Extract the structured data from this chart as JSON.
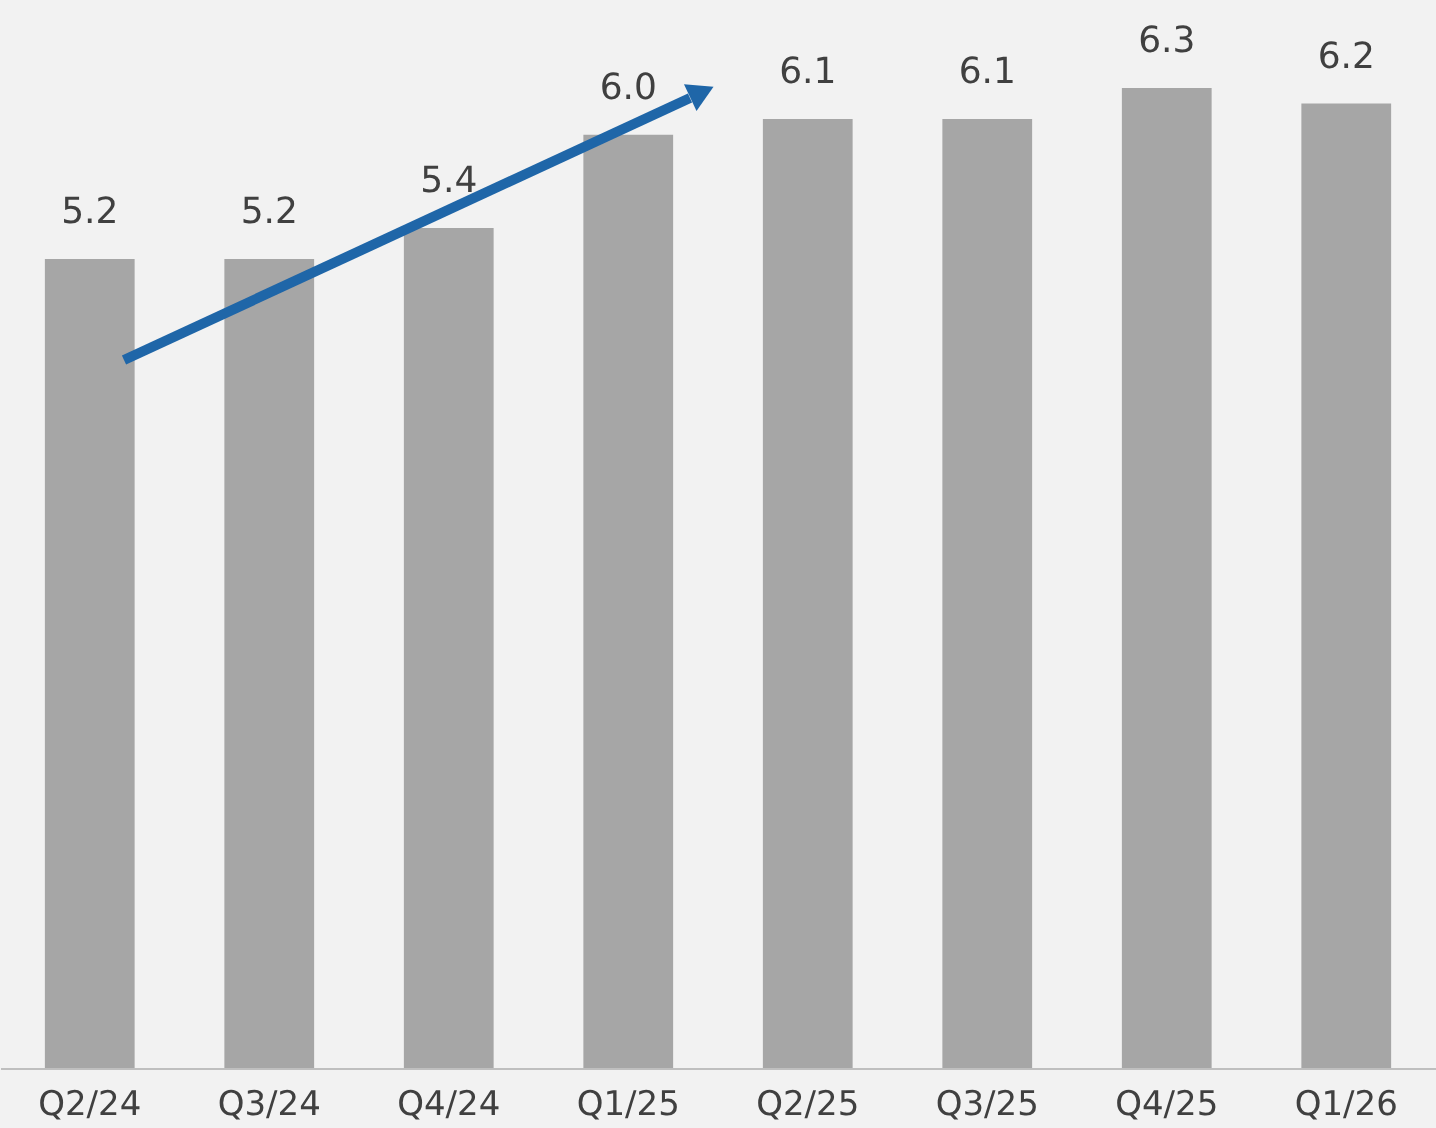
{
  "chart_data": {
    "type": "bar",
    "categories": [
      "Q2/24",
      "Q3/24",
      "Q4/24",
      "Q1/25",
      "Q2/25",
      "Q3/25",
      "Q4/25",
      "Q1/26"
    ],
    "values": [
      5.2,
      5.2,
      5.4,
      6.0,
      6.1,
      6.1,
      6.3,
      6.2
    ],
    "value_labels": [
      "5.2",
      "5.2",
      "5.4",
      "6.0",
      "6.1",
      "6.1",
      "6.3",
      "6.2"
    ],
    "color": "#a6a6a6",
    "tick_labels": "x",
    "grid": false
  }
}
